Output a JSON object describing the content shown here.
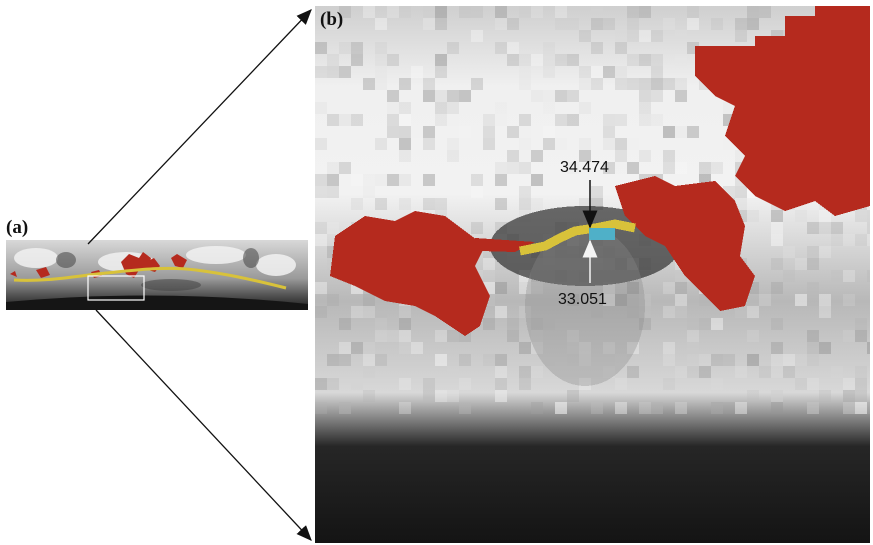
{
  "panel_labels": {
    "a": "(a)",
    "b": "(b)"
  },
  "measurements": {
    "upper": "34.474",
    "lower": "33.051"
  },
  "colors": {
    "overlay_red": "#b52a1e",
    "path_yellow": "#d8c23a",
    "marker_cyan": "#4fb0c8",
    "tissue_light": "#e6e6e6",
    "tissue_dark": "#1e1e1e"
  }
}
